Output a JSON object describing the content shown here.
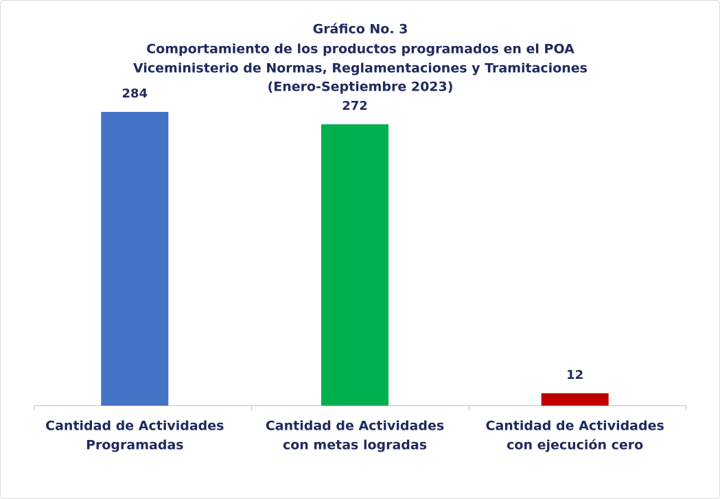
{
  "chart_data": {
    "type": "bar",
    "title": "Gráfico No. 3",
    "subtitle": [
      "Comportamiento de los productos programados en el POA",
      "Viceministerio de Normas, Reglamentaciones y Tramitaciones",
      "(Enero-Septiembre 2023)"
    ],
    "categories": [
      [
        "Cantidad de Actividades",
        "Programadas"
      ],
      [
        "Cantidad de Actividades",
        "con metas logradas"
      ],
      [
        "Cantidad de Actividades",
        "con ejecución cero"
      ]
    ],
    "values": [
      284,
      272,
      12
    ],
    "colors": [
      "#4472c4",
      "#00b050",
      "#c00000"
    ]
  }
}
